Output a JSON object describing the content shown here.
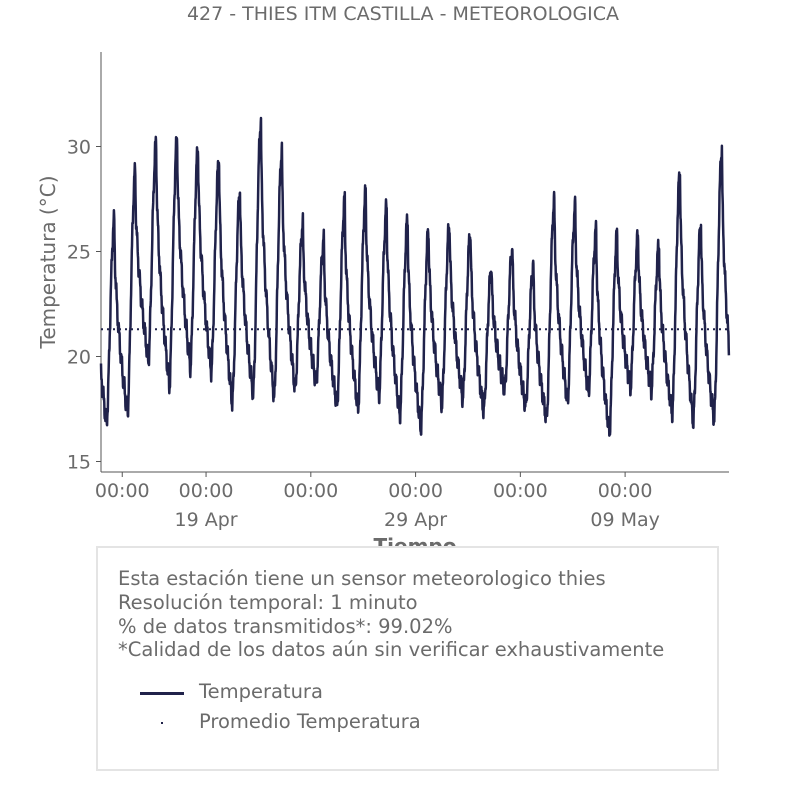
{
  "chart_data": {
    "type": "line",
    "title": "427 - THIES ITM CASTILLA - METEOROLOGICA",
    "xlabel": "Tiempo",
    "ylabel": "Temperatura (°C)",
    "x_range": [
      "2025-04-13T23:40",
      "2025-05-13T23:00"
    ],
    "ylim": [
      14.5,
      34.5
    ],
    "yticks": [
      15,
      20,
      25,
      30
    ],
    "xtick_time_label": "00:00",
    "xticks": [
      {
        "date": "2025-04-15T00:00",
        "time": "00:00",
        "date_label": ""
      },
      {
        "date": "2025-04-19T00:00",
        "time": "00:00",
        "date_label": "19 Apr"
      },
      {
        "date": "2025-04-24T00:00",
        "time": "00:00",
        "date_label": ""
      },
      {
        "date": "2025-04-29T00:00",
        "time": "00:00",
        "date_label": "29 Apr"
      },
      {
        "date": "2025-05-04T00:00",
        "time": "00:00",
        "date_label": ""
      },
      {
        "date": "2025-05-09T00:00",
        "time": "00:00",
        "date_label": "09 May"
      }
    ],
    "grid": false,
    "series": [
      {
        "name": "Temperatura",
        "color": "#20224a",
        "style": "solid",
        "daily_min": [
          16.8,
          17.3,
          19.8,
          18.6,
          19.5,
          19.3,
          17.8,
          18.2,
          18.0,
          18.4,
          18.7,
          17.7,
          17.5,
          18.1,
          17.2,
          16.6,
          17.7,
          18.0,
          17.4,
          18.4,
          17.6,
          17.0,
          17.8,
          18.3,
          16.4,
          18.5,
          18.4,
          17.3,
          16.9,
          17.0
        ],
        "daily_max": [
          26.5,
          28.8,
          30.2,
          30.4,
          29.9,
          29.4,
          27.9,
          31.2,
          29.8,
          26.3,
          25.5,
          27.4,
          27.8,
          27.1,
          26.5,
          26.0,
          26.3,
          25.9,
          24.2,
          25.1,
          24.3,
          27.4,
          27.1,
          26.0,
          25.8,
          25.7,
          25.3,
          28.8,
          26.3,
          29.9
        ]
      },
      {
        "name": "Promedio Temperatura",
        "color": "#20224a",
        "style": "dotted",
        "value": 21.3
      }
    ],
    "legend_position": "bottom"
  },
  "info": {
    "lines": [
      "Esta estación tiene un sensor meteorologico thies",
      "Resolución temporal: 1 minuto",
      "% de datos transmitidos*: 99.02%",
      "*Calidad de los datos aún sin verificar exhaustivamente"
    ]
  },
  "legend": {
    "items": [
      "Temperatura",
      "Promedio Temperatura"
    ]
  }
}
